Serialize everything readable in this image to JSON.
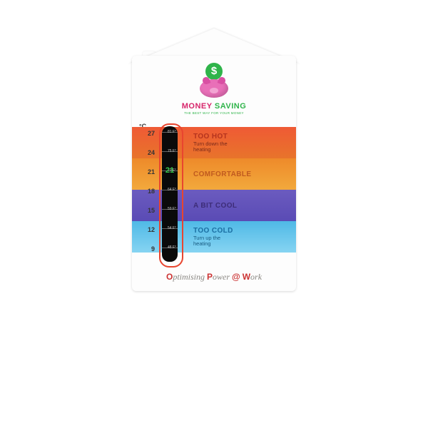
{
  "brand": {
    "coin_symbol": "$",
    "coin_bg": "#2fb44a",
    "word1": "MONEY",
    "word1_color": "#d7256b",
    "word2": "SAVING",
    "word2_color": "#2fb44a",
    "tagline": "THE BEST WAY FOR YOUR MONEY"
  },
  "unit_c_label": "°C",
  "celsius_ticks": [
    27,
    24,
    21,
    18,
    15,
    12,
    9
  ],
  "fahrenheit_labels": [
    "81 F°",
    "75 F°",
    "70 F°",
    "64 F°",
    "59 F°",
    "54 F°",
    "48 F°"
  ],
  "current_reading": 21,
  "reading_color": "#35c24a",
  "bands": [
    {
      "title": "TOO HOT",
      "sub": "Turn down the\nheating",
      "title_color": "#b5331e",
      "sub_color": "#7a2a1a",
      "gradient": [
        "#ef5a35",
        "#e8742b"
      ]
    },
    {
      "title": "COMFORTABLE",
      "sub": "",
      "title_color": "#c05a1f",
      "sub_color": "#c05a1f",
      "gradient": [
        "#ee8a2a",
        "#f2a93c"
      ]
    },
    {
      "title": "A BIT COOL",
      "sub": "",
      "title_color": "#3d2d78",
      "sub_color": "#3d2d78",
      "gradient": [
        "#6b5bbf",
        "#5a4bb5"
      ]
    },
    {
      "title": "TOO COLD",
      "sub": "Turn up the\nheating",
      "title_color": "#1b6fa3",
      "sub_color": "#185a80",
      "gradient": [
        "#4fb9e6",
        "#86d4f2"
      ]
    }
  ],
  "thermo_border_color": "#e8452f",
  "footer": {
    "parts": [
      {
        "t": "O",
        "cls": "b"
      },
      {
        "t": "ptimising ",
        "cls": ""
      },
      {
        "t": "P",
        "cls": "b"
      },
      {
        "t": "ower ",
        "cls": ""
      },
      {
        "t": "@",
        "cls": "b"
      },
      {
        "t": " ",
        "cls": ""
      },
      {
        "t": "W",
        "cls": "b"
      },
      {
        "t": "ork",
        "cls": ""
      }
    ]
  }
}
